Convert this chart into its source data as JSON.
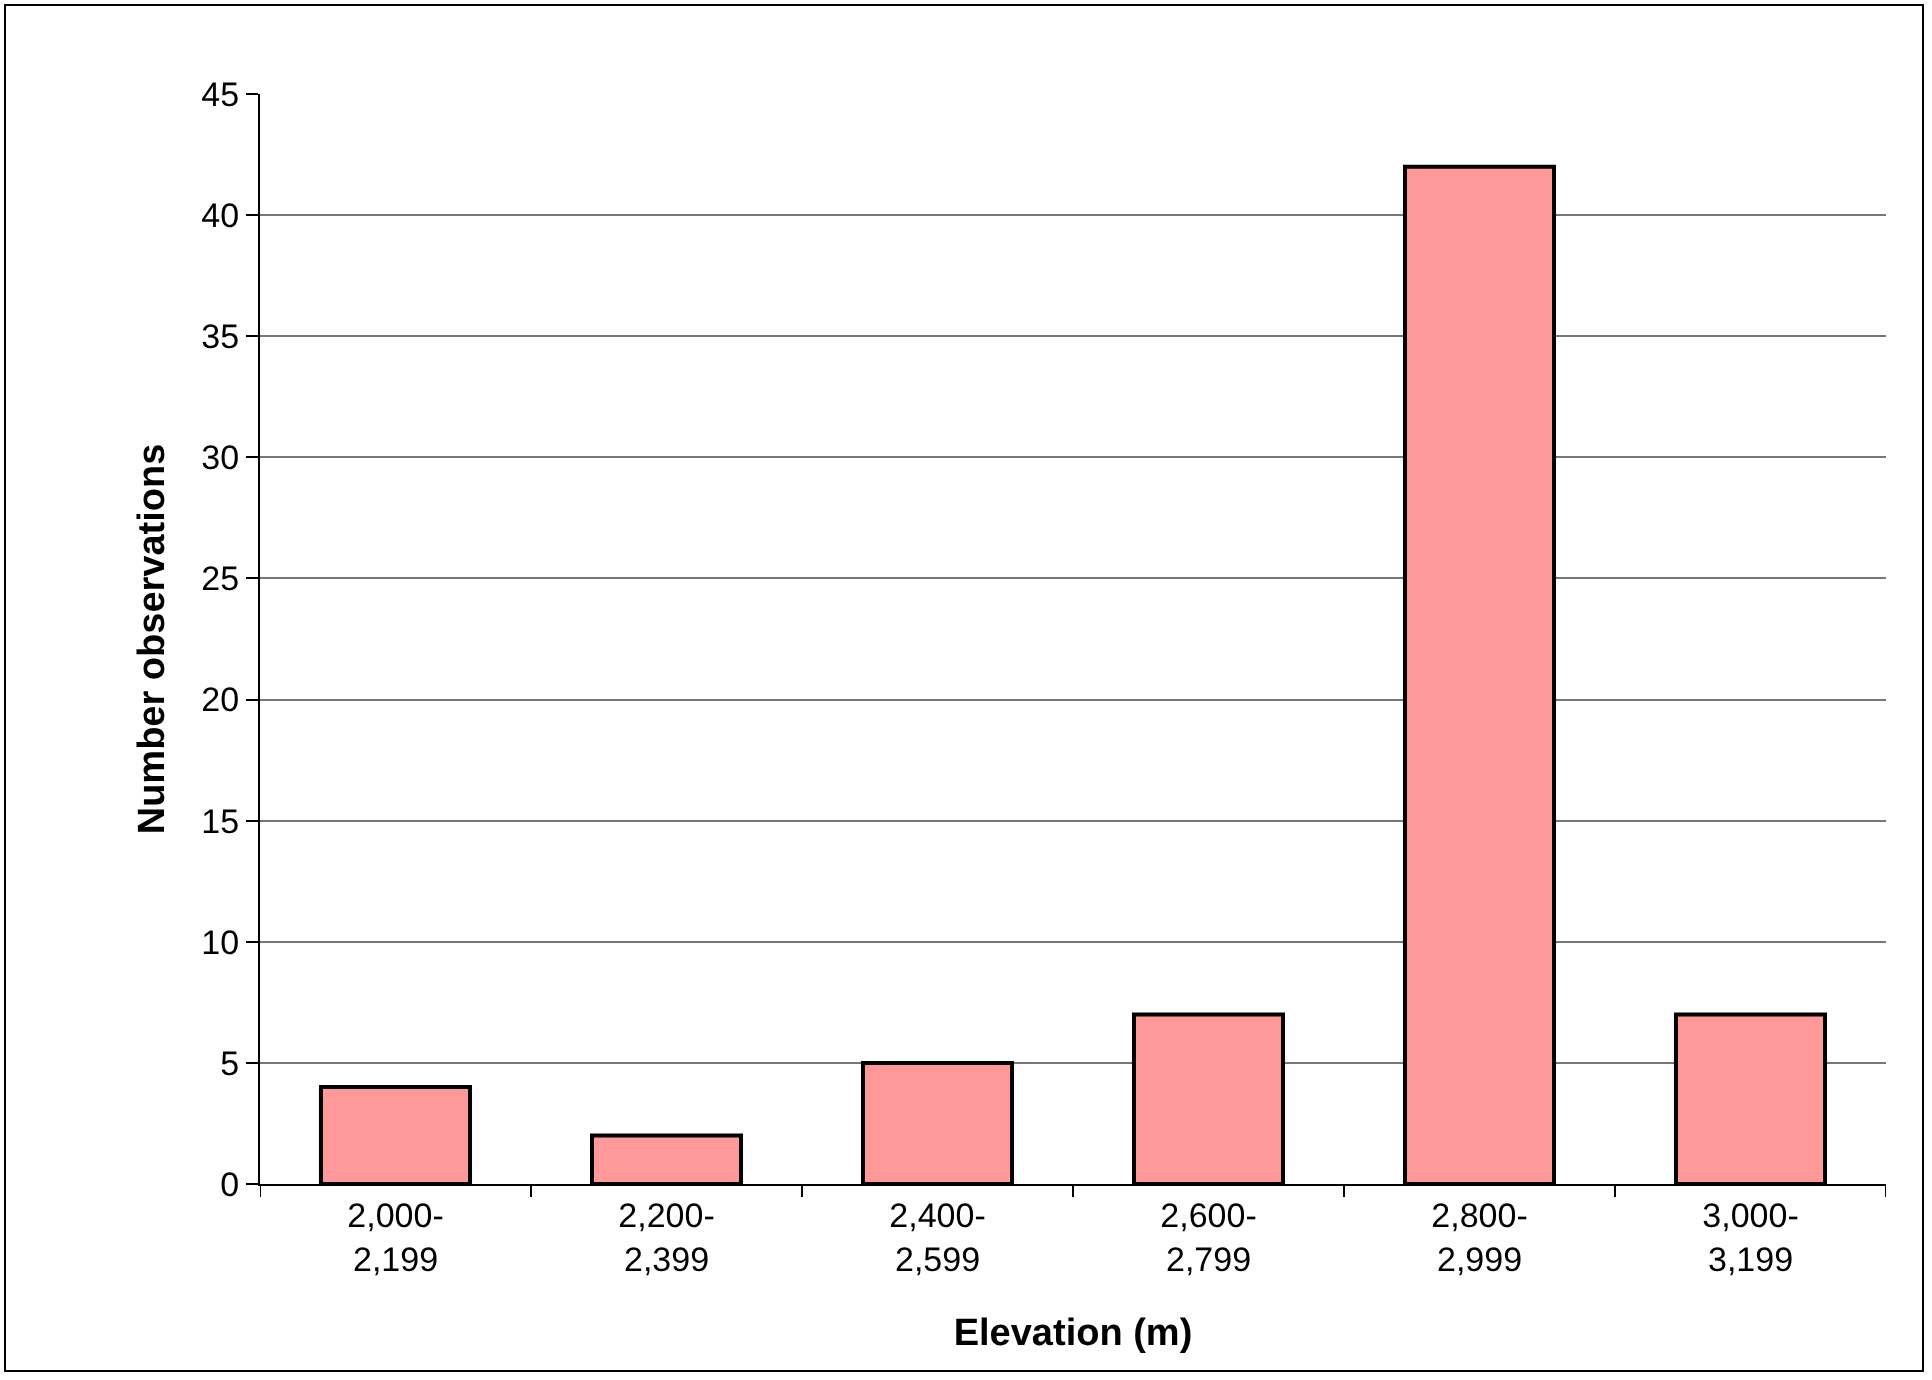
{
  "chart_data": {
    "type": "bar",
    "xlabel": "Elevation (m)",
    "ylabel": "Number observations",
    "categories": [
      "2,000-\n2,199",
      "2,200-\n2,399",
      "2,400-\n2,599",
      "2,600-\n2,799",
      "2,800-\n2,999",
      "3,000-\n3,199"
    ],
    "values": [
      4,
      2,
      5,
      7,
      42,
      7
    ],
    "color": "#ff9999",
    "ylim": [
      0,
      45
    ],
    "yticks": [
      0,
      5,
      10,
      15,
      20,
      25,
      30,
      35,
      40,
      45
    ],
    "grid": "y",
    "legend": false
  }
}
